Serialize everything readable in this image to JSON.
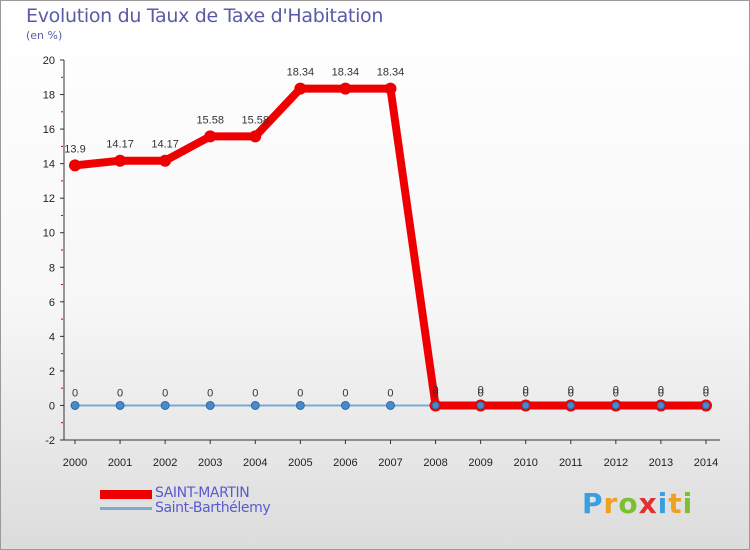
{
  "chart_data": {
    "type": "line",
    "title": "Evolution du Taux de Taxe d'Habitation",
    "subtitle": "(en %)",
    "x": [
      "2000",
      "2001",
      "2002",
      "2003",
      "2004",
      "2005",
      "2006",
      "2007",
      "2008",
      "2009",
      "2010",
      "2011",
      "2012",
      "2013",
      "2014"
    ],
    "yticks": [
      "-2",
      "0",
      "2",
      "4",
      "6",
      "8",
      "10",
      "12",
      "14",
      "16",
      "18",
      "20"
    ],
    "ylim": [
      -2,
      20
    ],
    "series": [
      {
        "name": "SAINT-MARTIN",
        "color": "#ee0000",
        "values": [
          13.9,
          14.17,
          14.17,
          15.58,
          15.58,
          18.34,
          18.34,
          18.34,
          0,
          0,
          0,
          0,
          0,
          0,
          0
        ],
        "labels": [
          "13.9",
          "14.17",
          "14.17",
          "15.58",
          "15.58",
          "18.34",
          "18.34",
          "18.34",
          "0",
          "0",
          "0",
          "0",
          "0",
          "0",
          "0"
        ]
      },
      {
        "name": "Saint-Barthélemy",
        "color": "#7aaad0",
        "values": [
          0,
          0,
          0,
          0,
          0,
          0,
          0,
          0,
          0,
          0,
          0,
          0,
          0,
          0,
          0
        ],
        "labels": [
          "0",
          "0",
          "0",
          "0",
          "0",
          "0",
          "0",
          "0",
          "0",
          "0",
          "0",
          "0",
          "0",
          "0",
          "0"
        ]
      }
    ],
    "legend_position": "bottom-left",
    "grid": false
  },
  "logo": {
    "letters": [
      "P",
      "r",
      "o",
      "x",
      "i",
      "t",
      "i"
    ],
    "colors": [
      "#3a9fe0",
      "#f0a020",
      "#7cc030",
      "#e03030",
      "#3a9fe0",
      "#f0a020",
      "#7cc030"
    ]
  }
}
